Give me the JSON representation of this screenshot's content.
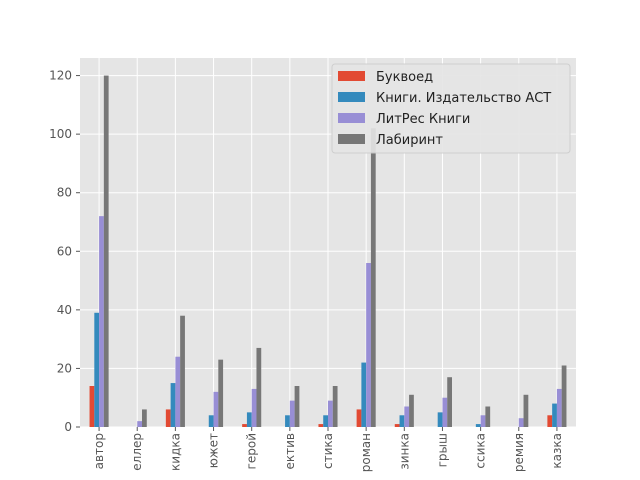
{
  "chart_data": {
    "type": "bar",
    "categories": [
      "автор",
      "еллер",
      "кидка",
      "южет",
      "герой",
      "ектив",
      "стика",
      "роман",
      "зинка",
      "грыш",
      "ссика",
      "ремия",
      "казка"
    ],
    "series": [
      {
        "name": "Буквоед",
        "color": "#E24A33",
        "values": [
          14,
          0,
          6,
          0,
          1,
          0,
          1,
          6,
          1,
          0,
          0,
          0,
          4
        ]
      },
      {
        "name": "Книги. Издательство АСТ",
        "color": "#348ABD",
        "values": [
          39,
          0,
          15,
          4,
          5,
          4,
          4,
          22,
          4,
          5,
          1,
          0,
          8
        ]
      },
      {
        "name": "ЛитРес Книги",
        "color": "#988ED5",
        "values": [
          72,
          2,
          24,
          12,
          13,
          9,
          9,
          56,
          7,
          10,
          4,
          3,
          13
        ]
      },
      {
        "name": "Лабиринт",
        "color": "#777777",
        "values": [
          120,
          6,
          38,
          23,
          27,
          14,
          14,
          102,
          11,
          17,
          7,
          11,
          21
        ]
      }
    ],
    "ylim": [
      0,
      126
    ],
    "yticks": [
      0,
      20,
      40,
      60,
      80,
      100,
      120
    ],
    "grid": true,
    "legend": "upper right"
  }
}
